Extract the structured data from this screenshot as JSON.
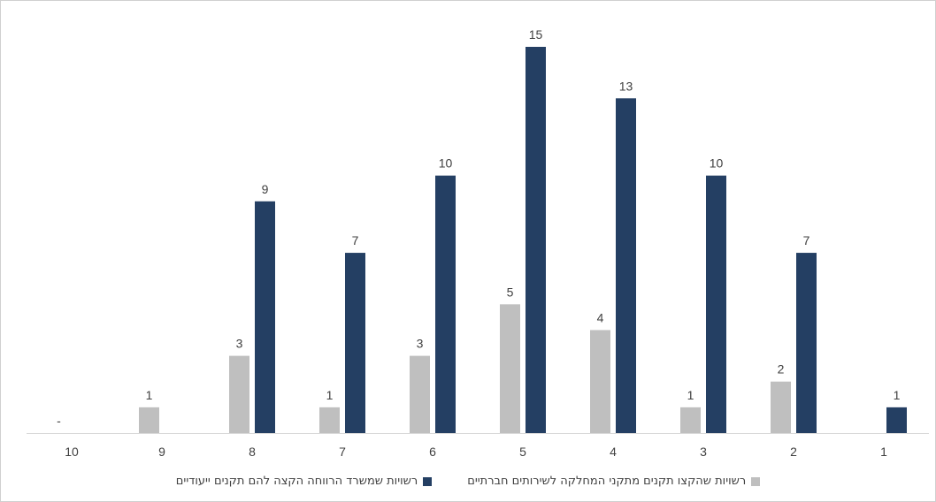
{
  "chart_data": {
    "type": "bar",
    "categories": [
      "10",
      "9",
      "8",
      "7",
      "6",
      "5",
      "4",
      "3",
      "2",
      "1"
    ],
    "series": [
      {
        "name": "רשויות שהקצו תקנים מתקני המחלקה לשירותים חברתיים",
        "color": "#bfbfbf",
        "values": [
          0,
          1,
          3,
          1,
          3,
          5,
          4,
          1,
          2,
          0
        ],
        "labels": [
          "-",
          "1",
          "3",
          "1",
          "3",
          "5",
          "4",
          "1",
          "2",
          ""
        ]
      },
      {
        "name": "רשויות שמשרד הרווחה הקצה להם תקנים ייעודיים",
        "color": "#243f63",
        "values": [
          0,
          0,
          9,
          7,
          10,
          15,
          13,
          10,
          7,
          1
        ],
        "labels": [
          "",
          "",
          "9",
          "7",
          "10",
          "15",
          "13",
          "10",
          "7",
          "1"
        ]
      }
    ],
    "ylim": [
      0,
      15
    ],
    "grid": false,
    "legend_position": "bottom"
  }
}
